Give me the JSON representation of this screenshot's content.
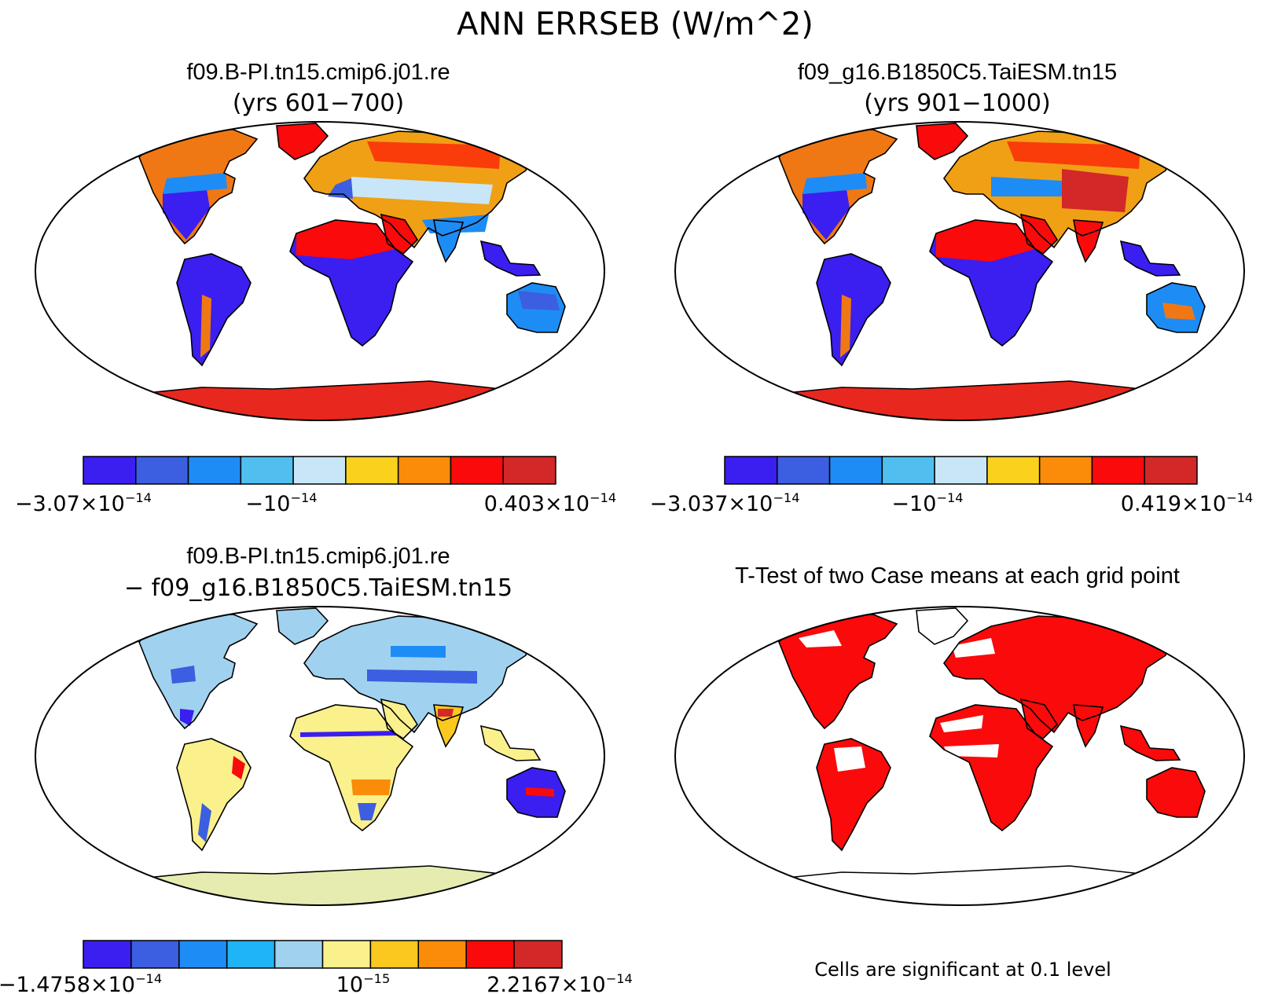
{
  "figure": {
    "main_title": "ANN ERRSEB (W/m^2)"
  },
  "panels": [
    {
      "id": "case1",
      "title": "f09.B-PI.tn15.cmip6.j01.re",
      "subtitle": "(yrs 601−700)",
      "colorbar": {
        "colors": [
          "#3b1ef0",
          "#3c5ee0",
          "#1e8cf5",
          "#50bff0",
          "#c8e6f8",
          "#fad21e",
          "#fa8c0a",
          "#fa0a0a",
          "#d22828"
        ],
        "labels": [
          {
            "mantissa": "−3.07×10",
            "exponent": "−14"
          },
          {
            "mantissa": "−10",
            "exponent": "−14"
          },
          {
            "mantissa": "0.403×10",
            "exponent": "−14"
          }
        ]
      }
    },
    {
      "id": "case2",
      "title": "f09_g16.B1850C5.TaiESM.tn15",
      "subtitle": "(yrs 901−1000)",
      "colorbar": {
        "colors": [
          "#3b1ef0",
          "#3c5ee0",
          "#1e8cf5",
          "#50bff0",
          "#c8e6f8",
          "#fad21e",
          "#fa8c0a",
          "#fa0a0a",
          "#d22828"
        ],
        "labels": [
          {
            "mantissa": "−3.037×10",
            "exponent": "−14"
          },
          {
            "mantissa": "−10",
            "exponent": "−14"
          },
          {
            "mantissa": "0.419×10",
            "exponent": "−14"
          }
        ]
      }
    },
    {
      "id": "difference",
      "title": "f09.B-PI.tn15.cmip6.j01.re",
      "subtitle": "− f09_g16.B1850C5.TaiESM.tn15",
      "colorbar": {
        "colors": [
          "#3b1ef0",
          "#3c5ee0",
          "#1e8cf5",
          "#1eb4f5",
          "#a0d2f0",
          "#faf08c",
          "#fac81e",
          "#fa8c0a",
          "#fa0a0a",
          "#d22828"
        ],
        "labels": [
          {
            "mantissa": "−1.4758×10",
            "exponent": "−14"
          },
          {
            "mantissa": "10",
            "exponent": "−15"
          },
          {
            "mantissa": "2.2167×10",
            "exponent": "−14"
          }
        ]
      }
    },
    {
      "id": "ttest",
      "title": "T-Test of two Case means at each grid point",
      "footnote": "Cells are significant at 0.1 level"
    }
  ],
  "colors": {
    "land_outline": "#000000",
    "significant": "#fa0a0a",
    "antarctic_case": "#e8281e",
    "antarctic_diff": "#e6ecb0"
  }
}
